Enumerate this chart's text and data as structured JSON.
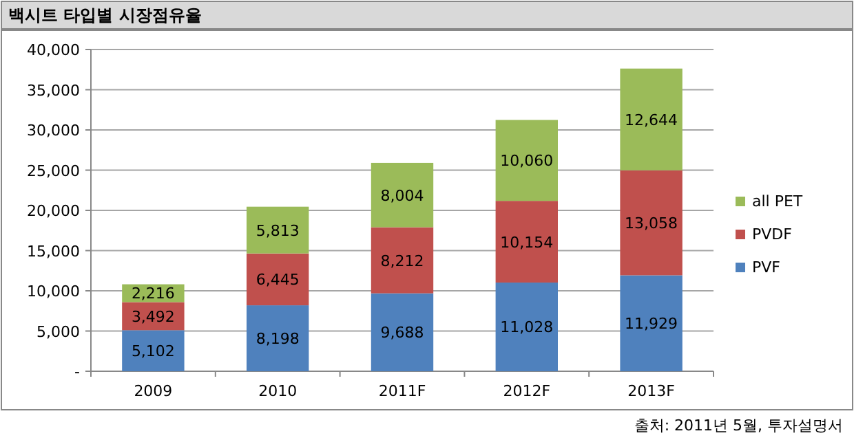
{
  "chart_data": {
    "type": "bar",
    "stacked": true,
    "title": "백시트 타입별 시장점유율",
    "categories": [
      "2009",
      "2010",
      "2011F",
      "2012F",
      "2013F"
    ],
    "series": [
      {
        "name": "PVF",
        "color": "#4f81bd",
        "values": [
          5102,
          8198,
          9688,
          11028,
          11929
        ],
        "value_labels": [
          "5,102",
          "8,198",
          "9,688",
          "11,028",
          "11,929"
        ]
      },
      {
        "name": "PVDF",
        "color": "#c0504d",
        "values": [
          3492,
          6445,
          8212,
          10154,
          13058
        ],
        "value_labels": [
          "3,492",
          "6,445",
          "8,212",
          "10,154",
          "13,058"
        ]
      },
      {
        "name": "all PET",
        "color": "#9bbb59",
        "values": [
          2216,
          5813,
          8004,
          10060,
          12644
        ],
        "value_labels": [
          "2,216",
          "5,813",
          "8,004",
          "10,060",
          "12,644"
        ]
      }
    ],
    "ylim": [
      0,
      40000
    ],
    "yticks": [
      {
        "value": 0,
        "label": "-"
      },
      {
        "value": 5000,
        "label": "5,000"
      },
      {
        "value": 10000,
        "label": "10,000"
      },
      {
        "value": 15000,
        "label": "15,000"
      },
      {
        "value": 20000,
        "label": "20,000"
      },
      {
        "value": 25000,
        "label": "25,000"
      },
      {
        "value": 30000,
        "label": "30,000"
      },
      {
        "value": 35000,
        "label": "35,000"
      },
      {
        "value": 40000,
        "label": "40,000"
      }
    ],
    "grid": "y",
    "legend": "right",
    "annotations": [
      "출처: 2011년 5월, 투자설명서"
    ]
  }
}
